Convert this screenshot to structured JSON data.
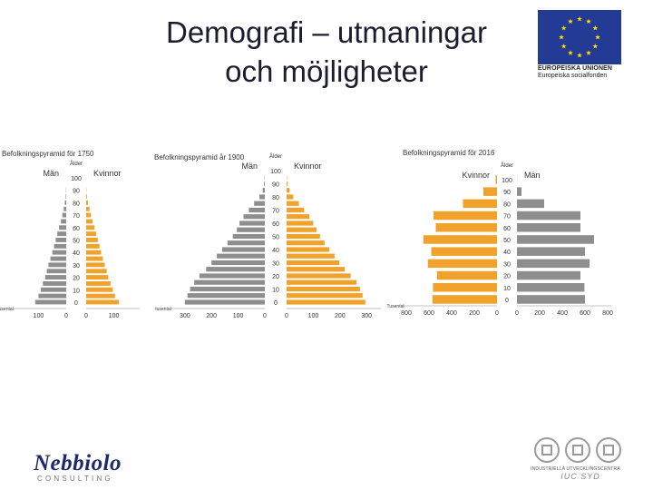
{
  "slide": {
    "title_line1": "Demografi – utmaningar",
    "title_line2": "och möjligheter"
  },
  "eu_logo": {
    "line1": "EUROPEISKA UNIONEN",
    "line2": "Europeiska socialfonden",
    "flag_color": "#243b95",
    "star_color": "#ffdd00"
  },
  "logos": {
    "left_name": "Nebbiolo",
    "left_sub": "CONSULTING",
    "right_small": "INDUSTRIELLA UTVECKLINGSCENTRA",
    "right_big": "IUC SYD"
  },
  "colors": {
    "male": "#8e8e8e",
    "female": "#f0a22a",
    "text": "#333333"
  },
  "chart_data": [
    {
      "type": "bar",
      "title": "Befolkningspyramid för 1750",
      "left_label": "Män",
      "right_label": "Kvinnor",
      "age_label": "Ålder",
      "unit_label": "tusental",
      "age_ticks": [
        "100",
        "90",
        "80",
        "70",
        "60",
        "50",
        "40",
        "30",
        "20",
        "10",
        "0"
      ],
      "left_series": "Män",
      "x_ticks_left": [
        "100",
        "0"
      ],
      "x_ticks_right": [
        "0",
        "100"
      ],
      "xmax": 180,
      "ages": [
        0,
        5,
        10,
        15,
        20,
        25,
        30,
        35,
        40,
        45,
        50,
        55,
        60,
        65,
        70,
        75,
        80,
        85,
        90
      ],
      "male": [
        112,
        100,
        92,
        84,
        76,
        70,
        64,
        57,
        50,
        44,
        38,
        32,
        26,
        19,
        14,
        9,
        5,
        2,
        1
      ],
      "female": [
        118,
        104,
        96,
        88,
        80,
        74,
        67,
        60,
        54,
        48,
        42,
        36,
        30,
        23,
        17,
        12,
        7,
        3,
        1
      ]
    },
    {
      "type": "bar",
      "title": "Befolkningspyramid år 1900",
      "left_label": "Män",
      "right_label": "Kvinnor",
      "age_label": "Ålder",
      "unit_label": "tusental",
      "age_ticks": [
        "100",
        "90",
        "80",
        "70",
        "60",
        "50",
        "40",
        "30",
        "20",
        "10",
        "0"
      ],
      "left_series": "Män",
      "x_ticks_left": [
        "300",
        "200",
        "100",
        "0"
      ],
      "x_ticks_right": [
        "0",
        "100",
        "200",
        "300"
      ],
      "xmax": 340,
      "ages": [
        0,
        5,
        10,
        15,
        20,
        25,
        30,
        35,
        40,
        45,
        50,
        55,
        60,
        65,
        70,
        75,
        80,
        85,
        90,
        95
      ],
      "male": [
        300,
        290,
        280,
        265,
        245,
        220,
        200,
        180,
        160,
        140,
        120,
        105,
        95,
        80,
        60,
        40,
        20,
        8,
        3,
        1
      ],
      "female": [
        295,
        285,
        275,
        262,
        240,
        218,
        198,
        180,
        160,
        142,
        125,
        112,
        100,
        85,
        66,
        46,
        25,
        11,
        4,
        1
      ]
    },
    {
      "type": "bar",
      "title": "Befolkningspyramid för 2016",
      "left_label": "Kvinnor",
      "right_label": "Män",
      "age_label": "Ålder",
      "unit_label": "Tusental",
      "age_ticks": [
        "100",
        "90",
        "80",
        "70",
        "60",
        "50",
        "40",
        "30",
        "20",
        "10",
        "0"
      ],
      "left_series": "Kvinnor",
      "x_ticks_left": [
        "800",
        "600",
        "400",
        "200",
        "0"
      ],
      "x_ticks_right": [
        "0",
        "200",
        "400",
        "600",
        "800"
      ],
      "xmax": 800,
      "ages": [
        0,
        10,
        20,
        30,
        40,
        50,
        60,
        70,
        80,
        90,
        100
      ],
      "male": [
        600,
        595,
        560,
        640,
        600,
        680,
        560,
        560,
        240,
        40,
        1
      ],
      "female": [
        570,
        565,
        530,
        610,
        580,
        650,
        540,
        560,
        300,
        120,
        12
      ]
    }
  ]
}
